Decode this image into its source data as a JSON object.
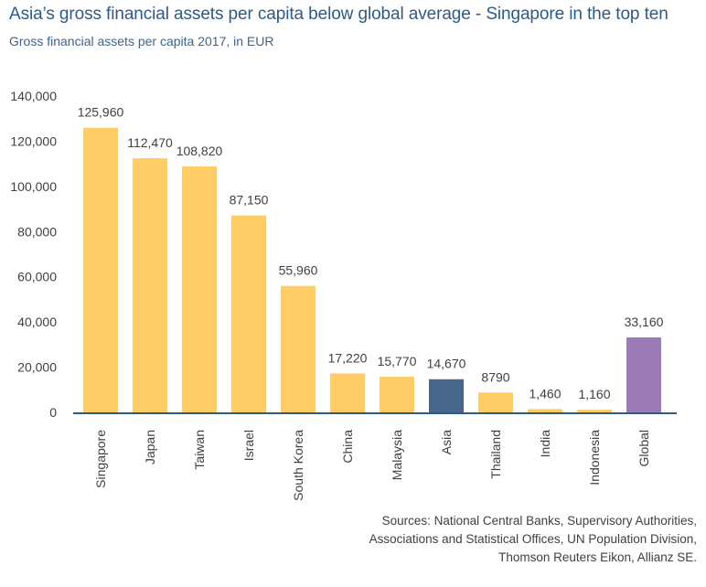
{
  "title": "Asia’s gross financial assets per capita below global average - Singapore in the top ten",
  "subtitle": "Gross financial assets per capita 2017, in EUR",
  "sources": "Sources: National Central Banks, Supervisory Authorities, Associations and Statistical Offices, UN Population Division, Thomson Reuters Eikon, Allianz SE.",
  "colors": {
    "asia_economies": "#ffcc66",
    "asia": "#48678b",
    "global": "#9a7bb6",
    "axis": "#2e5a86"
  },
  "chart_data": {
    "type": "bar",
    "categories": [
      "Singapore",
      "Japan",
      "Taiwan",
      "Israel",
      "South Korea",
      "China",
      "Malaysia",
      "Asia",
      "Thailand",
      "India",
      "Indonesia",
      "Global"
    ],
    "values": [
      125960,
      112470,
      108820,
      87150,
      55960,
      17220,
      15770,
      14670,
      8790,
      1460,
      1160,
      33160
    ],
    "data_labels": [
      "125,960",
      "112,470",
      "108,820",
      "87,150",
      "55,960",
      "17,220",
      "15,770",
      "14,670",
      "8790",
      "1,460",
      "1,160",
      "33,160"
    ],
    "bar_colors": [
      "#ffcc66",
      "#ffcc66",
      "#ffcc66",
      "#ffcc66",
      "#ffcc66",
      "#ffcc66",
      "#ffcc66",
      "#48678b",
      "#ffcc66",
      "#ffcc66",
      "#ffcc66",
      "#9a7bb6"
    ],
    "yticks": [
      0,
      20000,
      40000,
      60000,
      80000,
      100000,
      120000,
      140000
    ],
    "ytick_labels": [
      "0",
      "20,000",
      "40,000",
      "60,000",
      "80,000",
      "100,000",
      "120,000",
      "140,000"
    ],
    "ylim": [
      0,
      140000
    ],
    "xlabel": "",
    "ylabel": "",
    "grid": false,
    "legend": false
  }
}
